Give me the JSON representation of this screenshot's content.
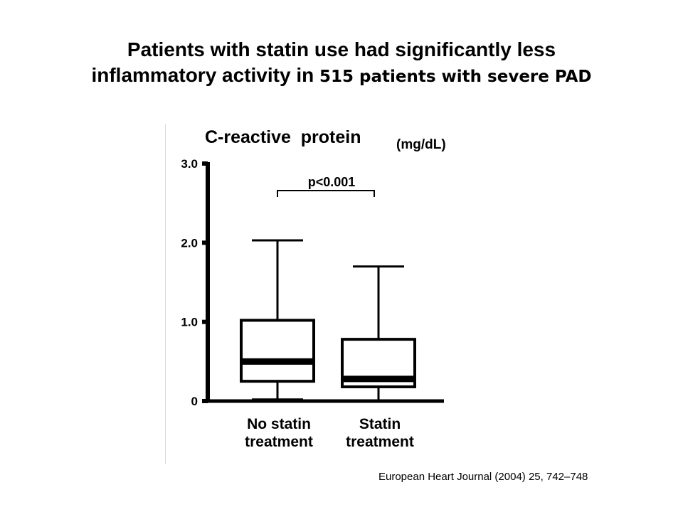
{
  "slide": {
    "title_line1": "Patients with statin use had significantly less",
    "title_line2_main": "inflammatory activity in ",
    "title_line2_tail": "515 patients with severe PAD",
    "citation": "European Heart Journal (2004) 25, 742–748"
  },
  "chart_data": {
    "type": "box",
    "title": "C-reactive  protein",
    "unit": "(mg/dL)",
    "ylim": [
      0,
      3.0
    ],
    "yticks": [
      {
        "value": 0,
        "label": "0"
      },
      {
        "value": 1.0,
        "label": "1.0"
      },
      {
        "value": 2.0,
        "label": "2.0"
      },
      {
        "value": 3.0,
        "label": "3.0"
      }
    ],
    "grid": false,
    "categories": [
      {
        "label_line1": "No statin",
        "label_line2": "treatment",
        "whisker_low": 0.02,
        "q1": 0.25,
        "median": 0.5,
        "q3": 1.02,
        "whisker_high": 2.03
      },
      {
        "label_line1": "Statin",
        "label_line2": "treatment",
        "whisker_low": 0.0,
        "q1": 0.18,
        "median": 0.28,
        "q3": 0.78,
        "whisker_high": 1.7
      }
    ],
    "significance": {
      "label": "p<0.001",
      "between": [
        0,
        1
      ]
    }
  },
  "colors": {
    "ink": "#000000",
    "divider": "#d8d8d8",
    "background": "#ffffff"
  }
}
